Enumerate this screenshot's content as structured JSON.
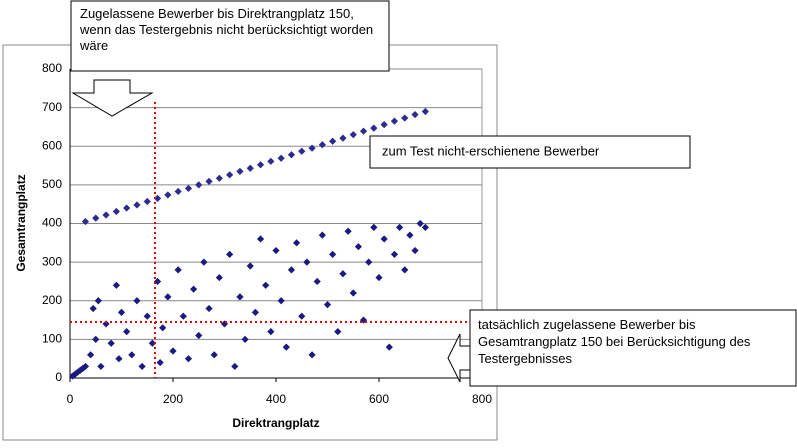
{
  "chart_data": {
    "type": "scatter",
    "xlabel": "Direktrangplatz",
    "ylabel": "Gesamtrangplatz",
    "xlim": [
      0,
      800
    ],
    "ylim": [
      0,
      800
    ],
    "xticks": [
      0,
      200,
      400,
      600,
      800
    ],
    "yticks": [
      0,
      100,
      200,
      300,
      400,
      500,
      600,
      700,
      800
    ],
    "grid": true,
    "reference_lines": {
      "x": 165,
      "y": 145,
      "color": "#e00000"
    },
    "annotations": [
      "Zugelassene Bewerber bis Direktrangplatz 150, wenn das Testergebnis nicht berücksichtigt worden wäre",
      "zum Test nicht-erschienene Bewerber",
      "tatsächlich zugelassene Bewerber bis Gesamtrangplatz 150 bei Berücksichtigung des Testergebnisses"
    ],
    "series": [
      {
        "color": "#2b2b92",
        "x": [
          30,
          50,
          70,
          90,
          110,
          130,
          150,
          170,
          190,
          210,
          230,
          250,
          270,
          290,
          310,
          330,
          350,
          370,
          390,
          410,
          430,
          450,
          470,
          490,
          510,
          530,
          550,
          570,
          590,
          610,
          630,
          650,
          670,
          690
        ],
        "y": [
          405,
          414,
          422,
          431,
          440,
          448,
          457,
          465,
          474,
          483,
          491,
          500,
          509,
          517,
          526,
          535,
          543,
          552,
          561,
          569,
          578,
          587,
          595,
          604,
          613,
          621,
          630,
          639,
          647,
          656,
          665,
          673,
          682,
          690
        ]
      },
      {
        "color": "#1a1a80",
        "x": [
          5,
          10,
          15,
          20,
          25,
          30,
          40,
          45,
          50,
          55,
          60,
          70,
          80,
          90,
          95,
          100,
          110,
          120,
          130,
          140,
          150,
          160,
          170,
          175,
          180,
          190,
          200,
          210,
          220,
          230,
          240,
          250,
          260,
          270,
          280,
          290,
          300,
          310,
          320,
          330,
          340,
          350,
          360,
          370,
          380,
          390,
          400,
          410,
          420,
          430,
          440,
          450,
          460,
          470,
          480,
          490,
          500,
          510,
          520,
          530,
          540,
          550,
          560,
          570,
          580,
          590,
          600,
          610,
          620,
          630,
          640,
          650,
          660,
          670,
          680,
          690
        ],
        "y": [
          5,
          10,
          15,
          20,
          25,
          30,
          60,
          180,
          100,
          200,
          30,
          140,
          90,
          240,
          50,
          170,
          120,
          60,
          200,
          30,
          160,
          90,
          250,
          40,
          130,
          210,
          70,
          280,
          160,
          50,
          230,
          110,
          300,
          180,
          60,
          260,
          140,
          320,
          30,
          210,
          100,
          290,
          170,
          360,
          240,
          120,
          330,
          200,
          80,
          280,
          350,
          160,
          300,
          60,
          250,
          370,
          190,
          320,
          120,
          270,
          380,
          220,
          340,
          150,
          300,
          390,
          260,
          360,
          80,
          320,
          390,
          280,
          370,
          330,
          400,
          390
        ]
      }
    ]
  }
}
